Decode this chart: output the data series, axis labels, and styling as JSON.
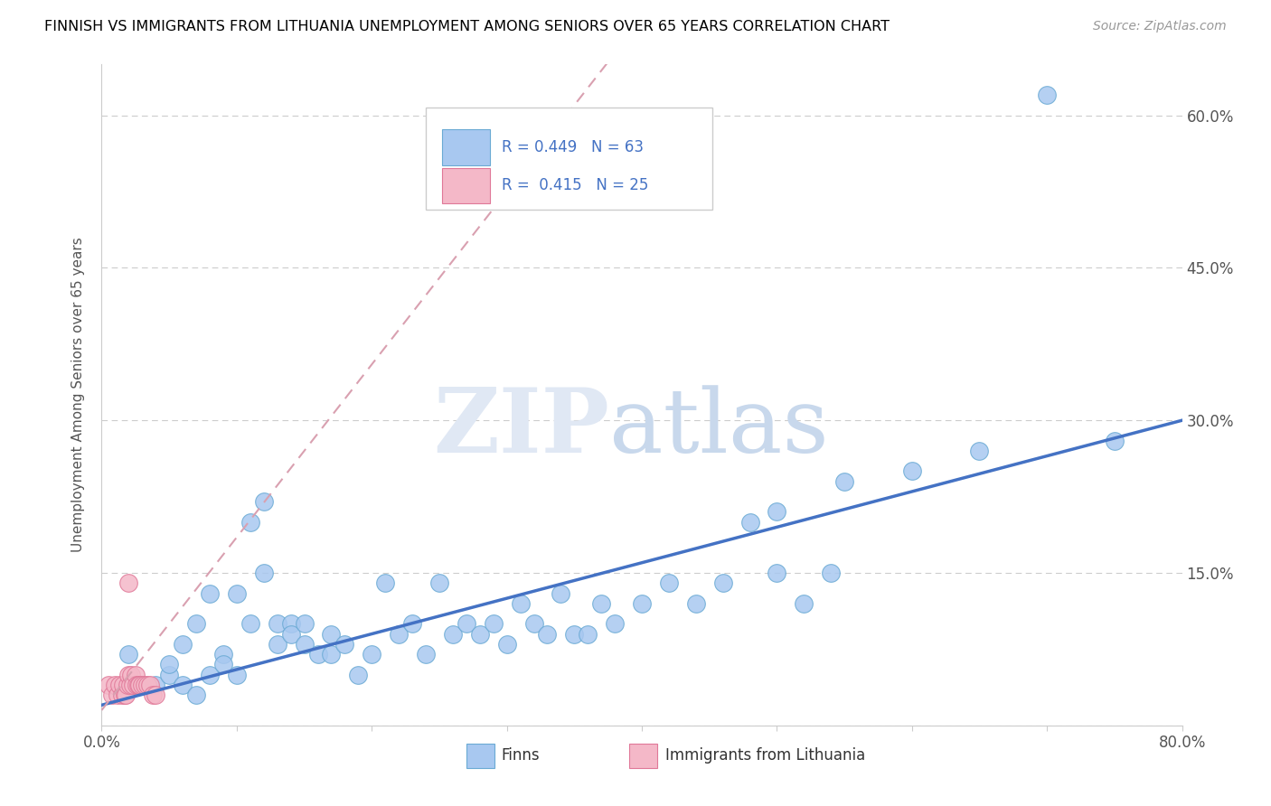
{
  "title": "FINNISH VS IMMIGRANTS FROM LITHUANIA UNEMPLOYMENT AMONG SENIORS OVER 65 YEARS CORRELATION CHART",
  "source": "Source: ZipAtlas.com",
  "ylabel": "Unemployment Among Seniors over 65 years",
  "xlim": [
    0,
    0.8
  ],
  "ylim": [
    0,
    0.65
  ],
  "ytick_positions": [
    0.0,
    0.15,
    0.3,
    0.45,
    0.6
  ],
  "yticklabels": [
    "",
    "15.0%",
    "30.0%",
    "45.0%",
    "60.0%"
  ],
  "finns_R": 0.449,
  "finns_N": 63,
  "lithuania_R": 0.415,
  "lithuania_N": 25,
  "finns_color": "#a8c8f0",
  "finns_edge_color": "#6aaad4",
  "lithuania_color": "#f4b8c8",
  "lithuania_edge_color": "#e07898",
  "trend_line_color": "#4472c4",
  "trend_dash_color": "#d9a0b0",
  "legend_text_color": "#4472c4",
  "finns_scatter_x": [
    0.02,
    0.03,
    0.04,
    0.05,
    0.05,
    0.06,
    0.06,
    0.07,
    0.07,
    0.08,
    0.08,
    0.09,
    0.09,
    0.1,
    0.1,
    0.11,
    0.11,
    0.12,
    0.12,
    0.13,
    0.13,
    0.14,
    0.14,
    0.15,
    0.15,
    0.16,
    0.17,
    0.17,
    0.18,
    0.19,
    0.2,
    0.21,
    0.22,
    0.23,
    0.24,
    0.25,
    0.26,
    0.27,
    0.28,
    0.29,
    0.3,
    0.31,
    0.32,
    0.33,
    0.34,
    0.35,
    0.36,
    0.37,
    0.38,
    0.4,
    0.42,
    0.44,
    0.46,
    0.48,
    0.5,
    0.52,
    0.54,
    0.55,
    0.6,
    0.65,
    0.7,
    0.75,
    0.5
  ],
  "finns_scatter_y": [
    0.07,
    0.04,
    0.04,
    0.05,
    0.06,
    0.04,
    0.08,
    0.1,
    0.03,
    0.05,
    0.13,
    0.07,
    0.06,
    0.13,
    0.05,
    0.2,
    0.1,
    0.22,
    0.15,
    0.08,
    0.1,
    0.1,
    0.09,
    0.1,
    0.08,
    0.07,
    0.09,
    0.07,
    0.08,
    0.05,
    0.07,
    0.14,
    0.09,
    0.1,
    0.07,
    0.14,
    0.09,
    0.1,
    0.09,
    0.1,
    0.08,
    0.12,
    0.1,
    0.09,
    0.13,
    0.09,
    0.09,
    0.12,
    0.1,
    0.12,
    0.14,
    0.12,
    0.14,
    0.2,
    0.15,
    0.12,
    0.15,
    0.24,
    0.25,
    0.27,
    0.62,
    0.28,
    0.21
  ],
  "lithuania_scatter_x": [
    0.005,
    0.008,
    0.01,
    0.012,
    0.013,
    0.015,
    0.016,
    0.017,
    0.018,
    0.019,
    0.02,
    0.021,
    0.022,
    0.023,
    0.025,
    0.026,
    0.027,
    0.028,
    0.03,
    0.032,
    0.034,
    0.036,
    0.038,
    0.04,
    0.02
  ],
  "lithuania_scatter_y": [
    0.04,
    0.03,
    0.04,
    0.03,
    0.04,
    0.03,
    0.04,
    0.03,
    0.03,
    0.04,
    0.05,
    0.04,
    0.05,
    0.04,
    0.05,
    0.04,
    0.04,
    0.04,
    0.04,
    0.04,
    0.04,
    0.04,
    0.03,
    0.03,
    0.14
  ]
}
